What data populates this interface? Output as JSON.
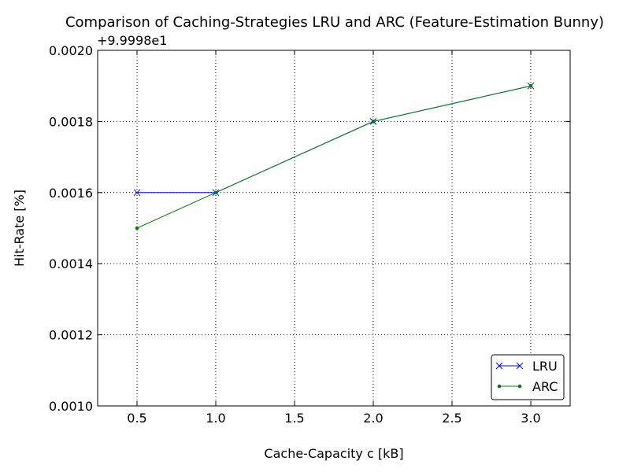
{
  "chart_data": {
    "type": "line",
    "title": "Comparison of Caching-Strategies LRU and ARC (Feature-Estimation Bunny)",
    "xlabel": "Cache-Capacity c [kB]",
    "ylabel": "Hit-Rate [%]",
    "y_offset_label": "+9.9998e1",
    "xlim": [
      0.25,
      3.25
    ],
    "ylim": [
      0.001,
      0.002
    ],
    "x_ticks": [
      0.5,
      1.0,
      1.5,
      2.0,
      2.5,
      3.0
    ],
    "x_tick_labels": [
      "0.5",
      "1.0",
      "1.5",
      "2.0",
      "2.5",
      "3.0"
    ],
    "y_ticks": [
      0.001,
      0.0012,
      0.0014,
      0.0016,
      0.0018,
      0.002
    ],
    "y_tick_labels": [
      "0.0010",
      "0.0012",
      "0.0014",
      "0.0016",
      "0.0018",
      "0.0020"
    ],
    "grid": true,
    "legend_position": "bottom-right",
    "series": [
      {
        "name": "LRU",
        "color": "#0000ff",
        "marker": "x",
        "x": [
          0.5,
          1.0,
          2.0,
          3.0
        ],
        "y": [
          0.0016,
          0.0016,
          0.0018,
          0.0019
        ]
      },
      {
        "name": "ARC",
        "color": "#008000",
        "marker": "dot",
        "x": [
          0.5,
          1.0,
          2.0,
          3.0
        ],
        "y": [
          0.0015,
          0.0016,
          0.0018,
          0.0019
        ]
      }
    ]
  }
}
